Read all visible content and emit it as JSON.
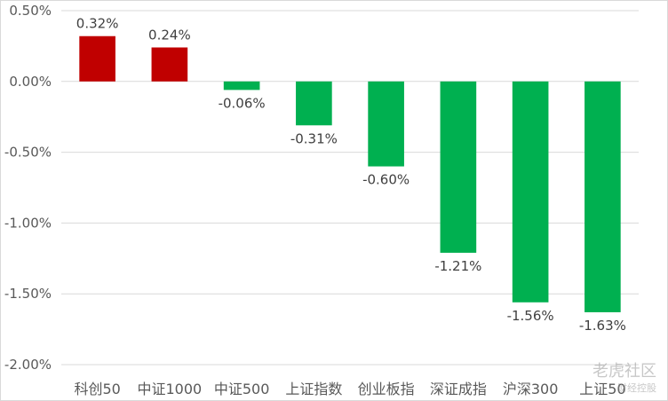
{
  "chart_data": {
    "type": "bar",
    "categories": [
      "科创50",
      "中证1000",
      "中证500",
      "上证指数",
      "创业板指",
      "深证成指",
      "沪深300",
      "上证50"
    ],
    "values": [
      0.32,
      0.24,
      -0.06,
      -0.31,
      -0.6,
      -1.21,
      -1.56,
      -1.63
    ],
    "value_labels": [
      "0.32%",
      "0.24%",
      "-0.06%",
      "-0.31%",
      "-0.60%",
      "-1.21%",
      "-1.56%",
      "-1.63%"
    ],
    "ylim": [
      -2.0,
      0.5
    ],
    "y_ticks": [
      0.5,
      0.0,
      -0.5,
      -1.0,
      -1.5,
      -2.0
    ],
    "y_tick_labels": [
      "0.50%",
      "0.00%",
      "-0.50%",
      "-1.00%",
      "-1.50%",
      "-2.00%"
    ],
    "grid": true,
    "positive_color": "#c00000",
    "negative_color": "#00b050"
  },
  "watermark": {
    "brand": "老虎社区",
    "sub": "财经控股"
  }
}
